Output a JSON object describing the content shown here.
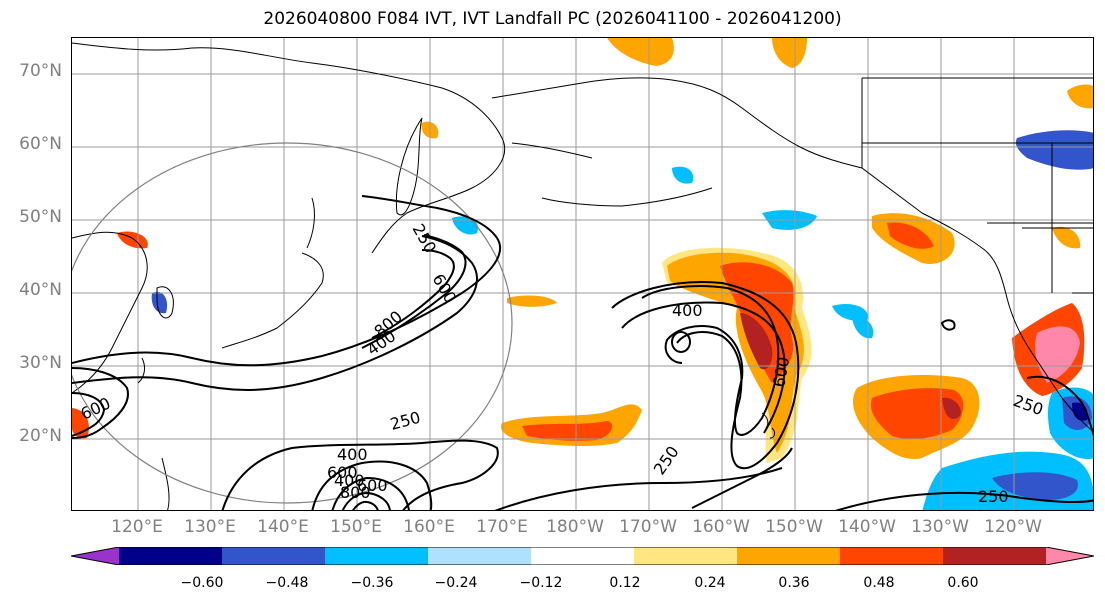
{
  "title": "2026040800 F084 IVT, IVT Landfall PC (2026041100 - 2026041200)",
  "lat_labels": [
    "70°N",
    "60°N",
    "50°N",
    "40°N",
    "30°N",
    "20°N"
  ],
  "lon_labels": [
    "120°E",
    "130°E",
    "140°E",
    "150°E",
    "160°E",
    "170°E",
    "180°W",
    "170°W",
    "160°W",
    "150°W",
    "140°W",
    "130°W",
    "120°W"
  ],
  "contour_labels": [
    "250",
    "600",
    "800",
    "400",
    "600",
    "400",
    "600",
    "250",
    "250",
    "250",
    "400",
    "800",
    "600",
    "400",
    "600",
    "250"
  ],
  "colorbar": {
    "colors": [
      "#9933cc",
      "#00008b",
      "#3355cc",
      "#00bfff",
      "#b0e0ff",
      "#ffffff",
      "#ffe680",
      "#ffa500",
      "#ff4500",
      "#b22222",
      "#ff88aa"
    ],
    "tick_labels": [
      "−0.60",
      "−0.48",
      "−0.36",
      "−0.24",
      "−0.12",
      "0.12",
      "0.24",
      "0.36",
      "0.48",
      "0.60"
    ]
  },
  "shading_colors": {
    "yellow": "#ffe680",
    "orange": "#ffa500",
    "red": "#ff4500",
    "darkred": "#b22222",
    "pink": "#ff88aa",
    "lightblue": "#b0e0ff",
    "cyan": "#00bfff",
    "blue": "#3355cc",
    "navy": "#00008b"
  }
}
